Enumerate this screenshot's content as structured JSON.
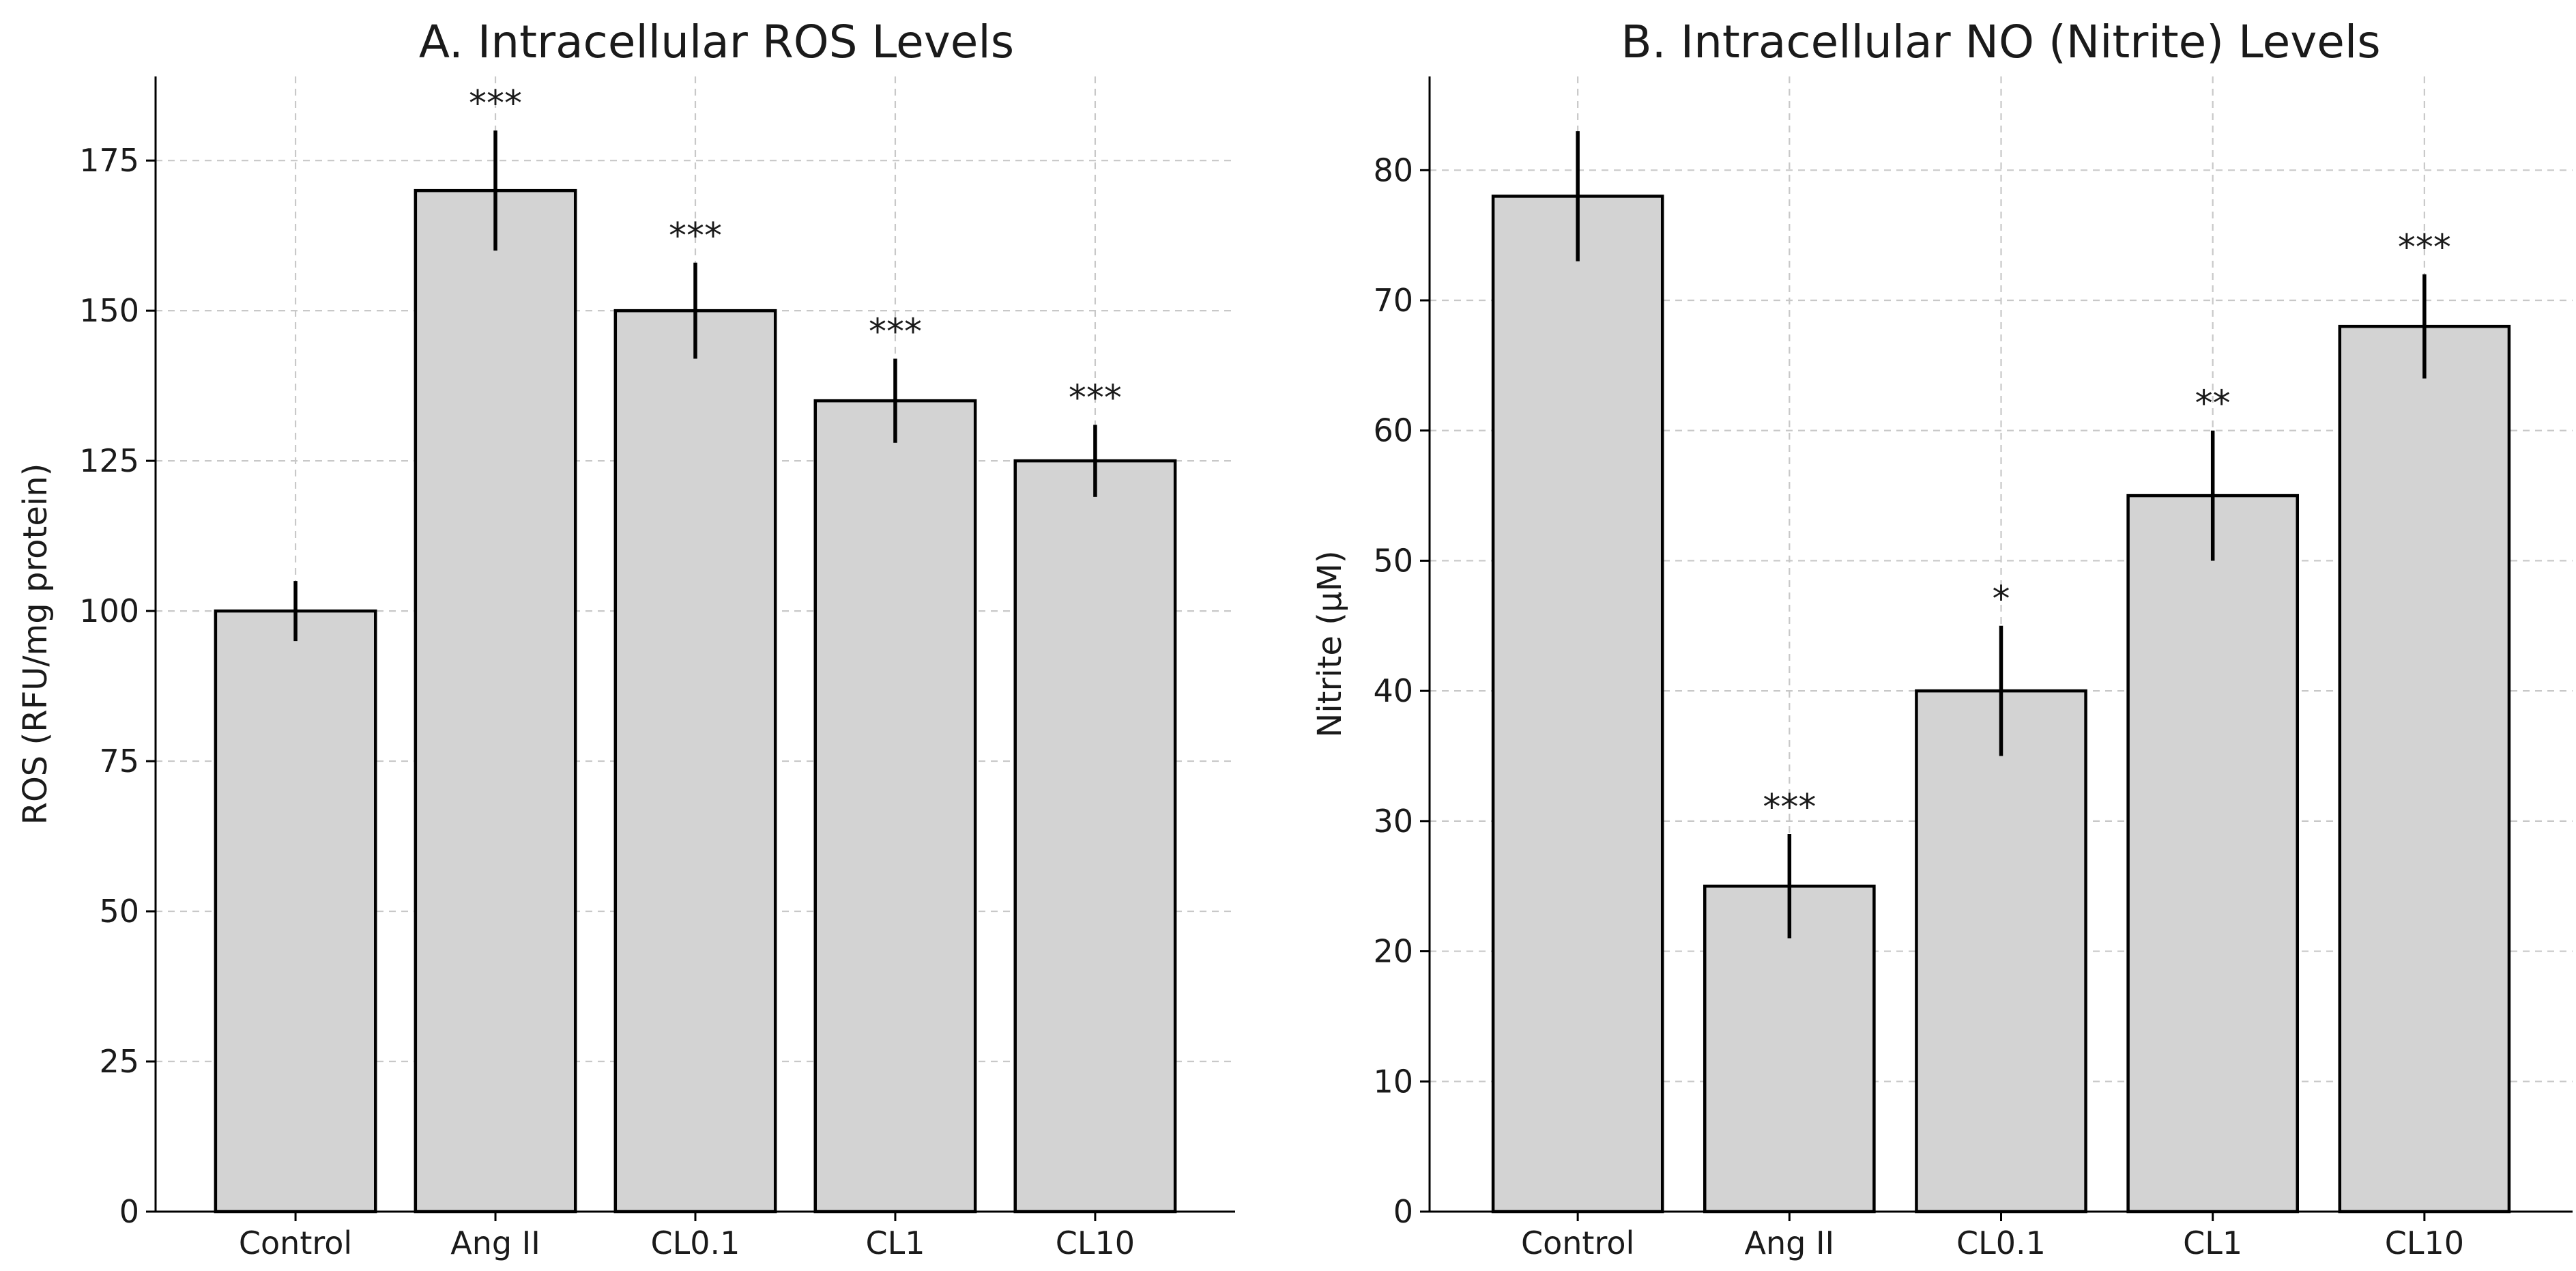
{
  "chart_data": [
    {
      "type": "bar",
      "title": "A. Intracellular ROS Levels",
      "xlabel": "",
      "ylabel": "ROS (RFU/mg protein)",
      "categories": [
        "Control",
        "Ang II",
        "CL0.1",
        "CL1",
        "CL10"
      ],
      "values": [
        100,
        170,
        150,
        135,
        125
      ],
      "errors": [
        5,
        10,
        8,
        7,
        6
      ],
      "significance": [
        "",
        "***",
        "***",
        "***",
        "***"
      ],
      "ylim": [
        0,
        189
      ],
      "yticks": [
        0,
        25,
        50,
        75,
        100,
        125,
        150,
        175
      ],
      "grid": true,
      "bar_color": "#d3d3d3"
    },
    {
      "type": "bar",
      "title": "B. Intracellular NO (Nitrite) Levels",
      "xlabel": "",
      "ylabel": "Nitrite (µM)",
      "categories": [
        "Control",
        "Ang II",
        "CL0.1",
        "CL1",
        "CL10"
      ],
      "values": [
        78,
        25,
        40,
        55,
        68
      ],
      "errors": [
        5,
        4,
        5,
        5,
        4
      ],
      "significance": [
        "",
        "***",
        "*",
        "**",
        "***"
      ],
      "ylim": [
        0,
        87.2
      ],
      "yticks": [
        0,
        10,
        20,
        30,
        40,
        50,
        60,
        70,
        80
      ],
      "grid": true,
      "bar_color": "#d3d3d3"
    }
  ]
}
